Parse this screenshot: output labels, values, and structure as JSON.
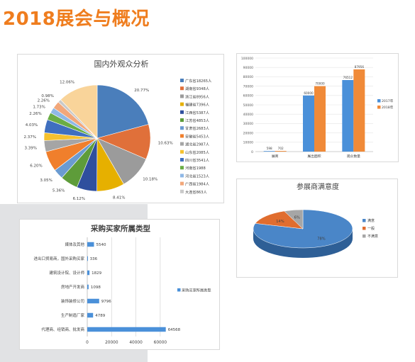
{
  "page": {
    "title": "2018展会与概况"
  },
  "chart_data": [
    {
      "id": "audience",
      "type": "pie",
      "title": "国内外观众分析",
      "slices": [
        {
          "label": "广东省18265人",
          "pct_label": "20.77%",
          "value": 20.77,
          "color": "#4a7ebb"
        },
        {
          "label": "湖南省9348人",
          "pct_label": "10.63%",
          "value": 10.63,
          "color": "#e0703a"
        },
        {
          "label": "浙江省8956人",
          "pct_label": "10.18%",
          "value": 10.18,
          "color": "#9b9b9b"
        },
        {
          "label": "福建省7396人",
          "pct_label": "8.41%",
          "value": 8.41,
          "color": "#e6b000"
        },
        {
          "label": "江西省5387人",
          "pct_label": "6.12%",
          "value": 6.12,
          "color": "#2f4f9e"
        },
        {
          "label": "江苏省4853人",
          "pct_label": "5.36%",
          "value": 5.36,
          "color": "#5e9c3a"
        },
        {
          "label": "甘肃省2683人",
          "pct_label": "3.05%",
          "value": 3.05,
          "color": "#6b9bd1"
        },
        {
          "label": "安徽省5453人",
          "pct_label": "6.20%",
          "value": 6.2,
          "color": "#f07f2c"
        },
        {
          "label": "湖北省2987人",
          "pct_label": "3.39%",
          "value": 3.39,
          "color": "#a5a5a5"
        },
        {
          "label": "山东省2085人",
          "pct_label": "2.37%",
          "value": 2.37,
          "color": "#f5c12e"
        },
        {
          "label": "四川省3541人",
          "pct_label": "4.03%",
          "value": 4.03,
          "color": "#3f6fbf"
        },
        {
          "label": "河南省1988",
          "pct_label": "2.26%",
          "value": 2.26,
          "color": "#6aad45"
        },
        {
          "label": "河北省1523人",
          "pct_label": "1.73%",
          "value": 1.73,
          "color": "#8fb8e6"
        },
        {
          "label": "广西省1984人",
          "pct_label": "2.26%",
          "value": 2.26,
          "color": "#f2a77a"
        },
        {
          "label": "大连省863人",
          "pct_label": "0.98%",
          "value": 0.98,
          "color": "#c9c9c9"
        },
        {
          "label": "",
          "pct_label": "12.06%",
          "value": 12.06,
          "color": "#f9d49a"
        }
      ]
    },
    {
      "id": "compare",
      "type": "bar",
      "categories": [
        "展商",
        "展出面积",
        "观众数量"
      ],
      "series": [
        {
          "name": "2017年",
          "color": "#4a90d9",
          "values": [
            598,
            60000,
            76512
          ],
          "labels": [
            "598",
            "60000",
            "76512"
          ]
        },
        {
          "name": "2018年",
          "color": "#f08a38",
          "values": [
            702,
            70000,
            87956
          ],
          "labels": [
            "702",
            "70000",
            "87956"
          ]
        }
      ],
      "ylim": [
        0,
        100000
      ],
      "yticks": [
        0,
        10000,
        20000,
        30000,
        40000,
        50000,
        60000,
        70000,
        80000,
        90000,
        100000
      ],
      "legend": "right"
    },
    {
      "id": "satisfaction",
      "type": "pie",
      "title": "参展商满意度",
      "slices": [
        {
          "label": "满意",
          "pct_label": "78%",
          "value": 78,
          "color": "#4a86c8",
          "side": "#2e5f96"
        },
        {
          "label": "一般",
          "pct_label": "14%",
          "value": 14,
          "color": "#e06d2f",
          "side": "#a84d1c"
        },
        {
          "label": "不满意",
          "pct_label": "6%",
          "value": 6,
          "color": "#a6a6a6",
          "side": "#767676"
        }
      ],
      "legend": "right"
    },
    {
      "id": "buyers",
      "type": "bar",
      "orientation": "horizontal",
      "title": "采购买家所属类型",
      "categories": [
        "媒体及其他",
        "进出口贸易商，国外采购买家",
        "建筑设计院、设计师",
        "房地产开发商",
        "装饰装修公司",
        "生产制造厂家",
        "代理商、经销商、批发商"
      ],
      "series": [
        {
          "name": "采购买家所属类型",
          "color": "#4a90d9",
          "values": [
            5540,
            336,
            1829,
            1098,
            9796,
            4789,
            64568
          ],
          "labels": [
            "5540",
            "336",
            "1829",
            "1098",
            "9796",
            "4789",
            "64568"
          ]
        }
      ],
      "xlim": [
        0,
        70000
      ],
      "xticks": [
        0,
        20000,
        40000,
        60000
      ],
      "legend": "right"
    }
  ]
}
